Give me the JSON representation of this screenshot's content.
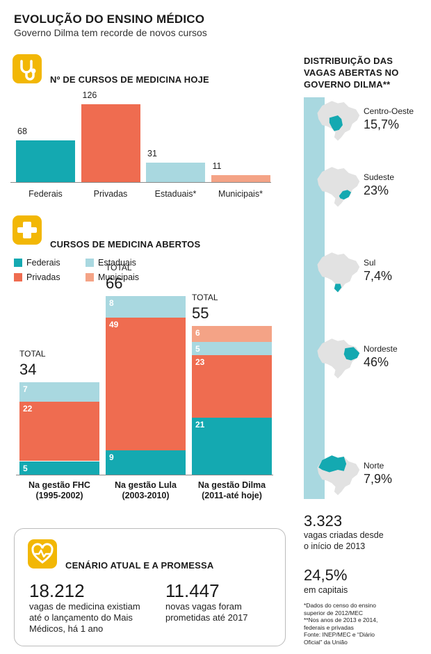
{
  "header": {
    "title": "EVOLUÇÃO DO ENSINO MÉDICO",
    "subtitle": "Governo Dilma tem recorde de novos cursos"
  },
  "colors": {
    "federais": "#14a9b1",
    "privadas": "#ef6c50",
    "estaduais": "#a9d8e0",
    "municipais": "#f4a386",
    "icon": "#f2b705",
    "map_land": "#e2e2e2"
  },
  "icons": {
    "section1": "stethoscope-icon",
    "section2": "medical-cross-icon",
    "section3": "heart-pulse-icon"
  },
  "section1": {
    "title": "Nº DE CURSOS DE MEDICINA HOJE"
  },
  "section2": {
    "title": "CURSOS DE MEDICINA ABERTOS",
    "legend": [
      {
        "label": "Federais",
        "color": "#14a9b1"
      },
      {
        "label": "Estaduais",
        "color": "#a9d8e0"
      },
      {
        "label": "Privadas",
        "color": "#ef6c50"
      },
      {
        "label": "Municipais",
        "color": "#f4a386"
      }
    ],
    "total_word": "TOTAL"
  },
  "chart_data": [
    {
      "type": "bar",
      "title": "Nº DE CURSOS DE MEDICINA HOJE",
      "categories": [
        "Federais",
        "Privadas",
        "Estaduais*",
        "Municipais*"
      ],
      "values": [
        68,
        126,
        31,
        11
      ],
      "colors": [
        "#14a9b1",
        "#ef6c50",
        "#a9d8e0",
        "#f4a386"
      ],
      "ylim": [
        0,
        126
      ]
    },
    {
      "type": "bar",
      "stacked": true,
      "title": "CURSOS DE MEDICINA ABERTOS",
      "categories": [
        "Na gestão FHC|(1995-2002)",
        "Na gestão Lula|(2003-2010)",
        "Na gestão Dilma|(2011-até hoje)"
      ],
      "totals": [
        34,
        66,
        55
      ],
      "series": [
        {
          "name": "Federais",
          "values": [
            5,
            9,
            21
          ],
          "color": "#14a9b1"
        },
        {
          "name": "Privadas",
          "values": [
            22,
            49,
            23
          ],
          "color": "#ef6c50"
        },
        {
          "name": "Estaduais",
          "values": [
            7,
            8,
            5
          ],
          "color": "#a9d8e0"
        },
        {
          "name": "Municipais",
          "values": [
            0,
            0,
            6
          ],
          "color": "#f4a386"
        }
      ],
      "ylim": [
        0,
        66
      ]
    },
    {
      "type": "table",
      "title": "DISTRIBUIÇÃO DAS VAGAS ABERTAS NO GOVERNO DILMA**",
      "regions": [
        {
          "name": "Centro-Oeste",
          "value": "15,7%"
        },
        {
          "name": "Sudeste",
          "value": "23%"
        },
        {
          "name": "Sul",
          "value": "7,4%"
        },
        {
          "name": "Nordeste",
          "value": "46%"
        },
        {
          "name": "Norte",
          "value": "7,9%"
        }
      ]
    }
  ],
  "map": {
    "title_lines": [
      "DISTRIBUIÇÃO DAS",
      "VAGAS ABERTAS NO",
      "GOVERNO DILMA**"
    ]
  },
  "stats": {
    "vagas_num": "3.323",
    "vagas_line1": "vagas criadas desde",
    "vagas_line2": "o início de 2013",
    "capitais_num": "24,5%",
    "capitais_text": "em capitais"
  },
  "footnotes": [
    "*Dados do censo do ensino",
    "superior de 2012/MEC",
    "**Nos anos de 2013 e 2014,",
    "federais e privadas",
    "Fonte: INEP/MEC e “Diário",
    "Oficial” da União"
  ],
  "card": {
    "title": "CENÁRIO ATUAL E A PROMESSA",
    "left_num": "18.212",
    "left_lines": [
      "vagas de medicina existiam",
      "até o lançamento do Mais",
      "Médicos, há 1 ano"
    ],
    "right_num": "11.447",
    "right_lines": [
      "novas vagas foram",
      "prometidas até 2017"
    ]
  }
}
